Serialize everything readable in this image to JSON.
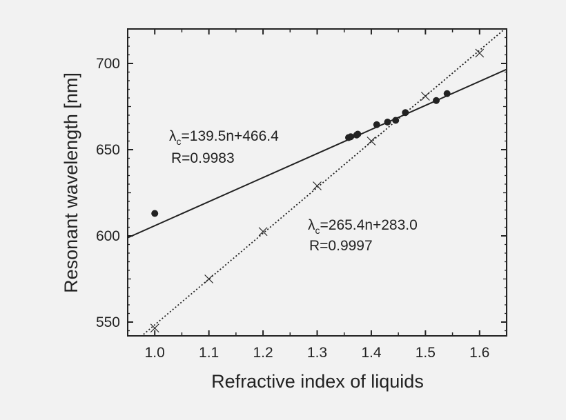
{
  "colors": {
    "background": "#f2f2f2",
    "ink": "#222222"
  },
  "chart_data": {
    "type": "scatter",
    "title": "",
    "xlabel": "Refractive index of liquids",
    "ylabel": "Resonant wavelength [nm]",
    "xlim": [
      0.95,
      1.65
    ],
    "ylim": [
      542,
      720
    ],
    "x_ticks": [
      "1.0",
      "1.1",
      "1.2",
      "1.3",
      "1.4",
      "1.5",
      "1.6"
    ],
    "y_ticks": [
      "550",
      "600",
      "650",
      "700"
    ],
    "grid": false,
    "legend": "none",
    "series": [
      {
        "marker": "filled-circle",
        "x": [
          1.0,
          1.358,
          1.362,
          1.373,
          1.375,
          1.41,
          1.43,
          1.445,
          1.463,
          1.52,
          1.54
        ],
        "y": [
          613,
          657,
          657.5,
          658.5,
          659,
          664.5,
          666,
          667,
          671.5,
          678.5,
          682.5
        ],
        "fit": {
          "slope": 139.5,
          "intercept": 466.4,
          "style": "solid",
          "x_range": [
            0.95,
            1.65
          ]
        }
      },
      {
        "marker": "cross",
        "x": [
          1.0,
          1.1,
          1.2,
          1.3,
          1.4,
          1.5,
          1.6
        ],
        "y": [
          546.5,
          575,
          602.5,
          629,
          655,
          681,
          706
        ],
        "fit": {
          "slope": 265.4,
          "intercept": 283.0,
          "style": "dotted",
          "x_range": [
            0.95,
            1.65
          ]
        }
      }
    ],
    "annotations": [
      {
        "symbol": "λ",
        "sub": "c",
        "equation": "=139.5n+466.4",
        "r_text": "R=0.9983"
      },
      {
        "symbol": "λ",
        "sub": "c",
        "equation": "=265.4n+283.0",
        "r_text": "R=0.9997"
      }
    ]
  }
}
